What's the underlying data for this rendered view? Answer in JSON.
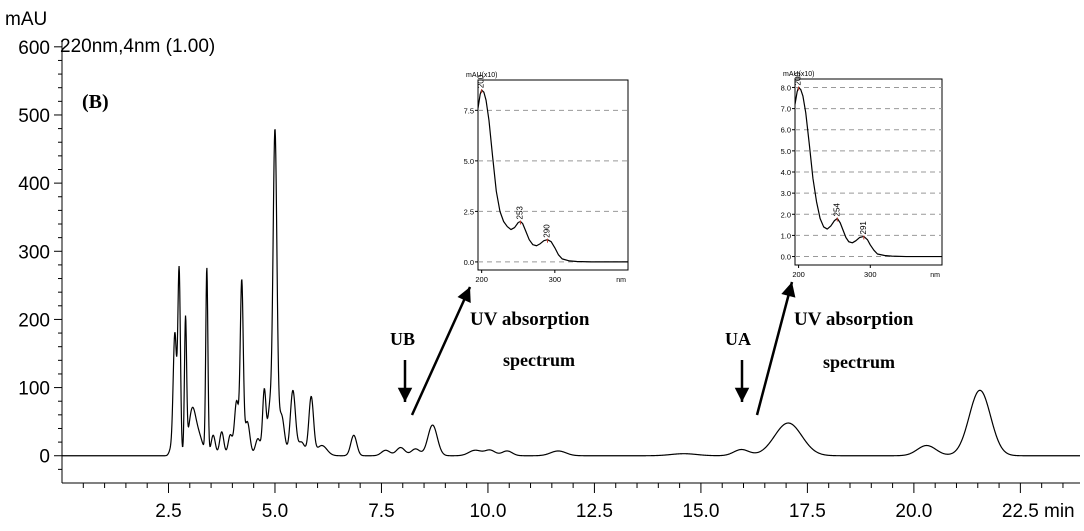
{
  "figure": {
    "panel_label": "(B)",
    "channel_label": "220nm,4nm (1.00)",
    "y_unit": "mAU",
    "x_unit": "min",
    "peak_labels": [
      {
        "text": "UB",
        "x": 8.7,
        "y": 48
      },
      {
        "text": "UA",
        "x": 17.1,
        "y": 48
      }
    ],
    "inset_caption_line1": "UV absorption",
    "inset_caption_line2": "spectrum"
  },
  "chart_data": [
    {
      "type": "line",
      "name": "chromatogram",
      "xlim": [
        0,
        23.9
      ],
      "ylim": [
        -40,
        610
      ],
      "x_ticks": [
        2.5,
        5.0,
        7.5,
        10.0,
        12.5,
        15.0,
        17.5,
        20.0,
        22.5
      ],
      "x_tick_labels": [
        "2.5",
        "5.0",
        "7.5",
        "10.0",
        "12.5",
        "15.0",
        "17.5",
        "20.0",
        "22.5"
      ],
      "y_ticks": [
        0,
        100,
        200,
        300,
        400,
        500,
        600
      ],
      "y_tick_labels": [
        "0",
        "100",
        "200",
        "300",
        "400",
        "500",
        "600"
      ],
      "xlabel": "min",
      "ylabel": "mAU",
      "grid": false,
      "baseline": 0,
      "peaks": [
        {
          "rt": 2.55,
          "height": 8,
          "width": 0.04
        },
        {
          "rt": 2.65,
          "height": 180,
          "width": 0.04
        },
        {
          "rt": 2.75,
          "height": 270,
          "width": 0.03
        },
        {
          "rt": 2.9,
          "height": 195,
          "width": 0.025
        },
        {
          "rt": 3.05,
          "height": 60,
          "width": 0.08
        },
        {
          "rt": 3.2,
          "height": 30,
          "width": 0.1
        },
        {
          "rt": 3.4,
          "height": 272,
          "width": 0.025
        },
        {
          "rt": 3.55,
          "height": 30,
          "width": 0.05
        },
        {
          "rt": 3.75,
          "height": 35,
          "width": 0.05
        },
        {
          "rt": 3.95,
          "height": 30,
          "width": 0.05
        },
        {
          "rt": 4.1,
          "height": 80,
          "width": 0.05
        },
        {
          "rt": 4.22,
          "height": 250,
          "width": 0.035
        },
        {
          "rt": 4.35,
          "height": 50,
          "width": 0.06
        },
        {
          "rt": 4.6,
          "height": 25,
          "width": 0.06
        },
        {
          "rt": 4.75,
          "height": 95,
          "width": 0.04
        },
        {
          "rt": 4.88,
          "height": 70,
          "width": 0.05
        },
        {
          "rt": 5.0,
          "height": 470,
          "width": 0.045
        },
        {
          "rt": 5.15,
          "height": 60,
          "width": 0.07
        },
        {
          "rt": 5.42,
          "height": 95,
          "width": 0.06
        },
        {
          "rt": 5.62,
          "height": 20,
          "width": 0.08
        },
        {
          "rt": 5.85,
          "height": 85,
          "width": 0.055
        },
        {
          "rt": 6.1,
          "height": 15,
          "width": 0.12
        },
        {
          "rt": 6.85,
          "height": 30,
          "width": 0.07
        },
        {
          "rt": 7.6,
          "height": 8,
          "width": 0.1
        },
        {
          "rt": 7.95,
          "height": 12,
          "width": 0.1
        },
        {
          "rt": 8.3,
          "height": 10,
          "width": 0.1
        },
        {
          "rt": 8.7,
          "height": 45,
          "width": 0.11
        },
        {
          "rt": 9.7,
          "height": 8,
          "width": 0.15
        },
        {
          "rt": 10.05,
          "height": 8,
          "width": 0.12
        },
        {
          "rt": 10.45,
          "height": 7,
          "width": 0.12
        },
        {
          "rt": 11.65,
          "height": 7,
          "width": 0.18
        },
        {
          "rt": 14.6,
          "height": 3,
          "width": 0.3
        },
        {
          "rt": 15.95,
          "height": 9,
          "width": 0.18
        },
        {
          "rt": 17.05,
          "height": 48,
          "width": 0.32
        },
        {
          "rt": 20.3,
          "height": 15,
          "width": 0.22
        },
        {
          "rt": 21.55,
          "height": 96,
          "width": 0.25
        }
      ]
    },
    {
      "type": "line",
      "name": "inset-UB-spectrum",
      "ylabel": "mAU(x10)",
      "xlabel": "nm",
      "xlim": [
        195,
        400
      ],
      "ylim": [
        -0.4,
        9.0
      ],
      "x_ticks": [
        200,
        300
      ],
      "y_ticks": [
        0.0,
        2.5,
        5.0,
        7.5
      ],
      "y_tick_labels": [
        "0.0",
        "2.5",
        "5.0",
        "7.5"
      ],
      "x": [
        195,
        198,
        200,
        203,
        206,
        210,
        215,
        220,
        225,
        230,
        235,
        240,
        245,
        250,
        253,
        256,
        260,
        265,
        270,
        275,
        280,
        285,
        290,
        295,
        300,
        305,
        310,
        320,
        330,
        350,
        380,
        400
      ],
      "y": [
        7.6,
        8.3,
        8.5,
        8.4,
        8.0,
        7.0,
        5.2,
        3.5,
        2.5,
        2.0,
        1.75,
        1.6,
        1.7,
        1.95,
        2.0,
        1.9,
        1.55,
        1.1,
        0.85,
        0.8,
        0.9,
        1.05,
        1.1,
        1.0,
        0.7,
        0.35,
        0.15,
        0.05,
        0.02,
        0.0,
        0.0,
        0.0
      ],
      "peak_annotations": [
        "200",
        "253",
        "290"
      ]
    },
    {
      "type": "line",
      "name": "inset-UA-spectrum",
      "ylabel": "mAU(x10)",
      "xlabel": "nm",
      "xlim": [
        195,
        400
      ],
      "ylim": [
        -0.4,
        8.4
      ],
      "x_ticks": [
        200,
        300
      ],
      "y_ticks": [
        0.0,
        1.0,
        2.0,
        3.0,
        4.0,
        5.0,
        6.0,
        7.0,
        8.0
      ],
      "y_tick_labels": [
        "0.0",
        "1.0",
        "2.0",
        "3.0",
        "4.0",
        "5.0",
        "6.0",
        "7.0",
        "8.0"
      ],
      "x": [
        195,
        198,
        200,
        203,
        206,
        210,
        215,
        220,
        225,
        230,
        235,
        240,
        245,
        250,
        254,
        258,
        262,
        266,
        270,
        275,
        280,
        285,
        291,
        296,
        300,
        305,
        310,
        320,
        330,
        350,
        380,
        400
      ],
      "y": [
        7.2,
        7.8,
        8.0,
        7.9,
        7.6,
        6.8,
        5.3,
        3.7,
        2.6,
        1.8,
        1.4,
        1.3,
        1.45,
        1.7,
        1.8,
        1.6,
        1.25,
        0.9,
        0.7,
        0.65,
        0.75,
        0.9,
        0.95,
        0.8,
        0.55,
        0.3,
        0.12,
        0.05,
        0.02,
        0.0,
        0.0,
        0.0
      ],
      "peak_annotations": [
        "200",
        "254",
        "291"
      ]
    }
  ]
}
